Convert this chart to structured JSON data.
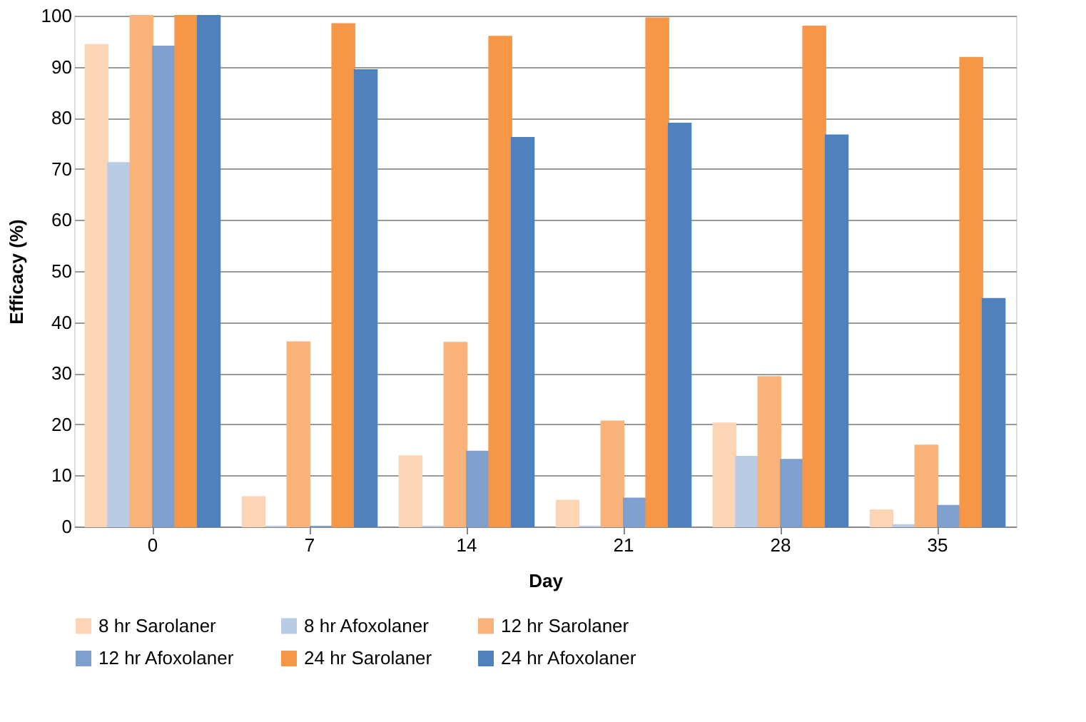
{
  "chart_data": {
    "type": "bar",
    "xlabel": "Day",
    "ylabel": "Efficacy (%)",
    "categories": [
      "0",
      "7",
      "14",
      "21",
      "28",
      "35"
    ],
    "series": [
      {
        "name": "8 hr Sarolaner",
        "color": "#fcd5b4",
        "values": [
          94.3,
          5.8,
          13.8,
          5.1,
          20.2,
          3.2
        ]
      },
      {
        "name": "8 hr Afoxolaner",
        "color": "#b8cce4",
        "values": [
          71.2,
          0,
          0,
          0,
          13.7,
          0.3
        ]
      },
      {
        "name": "12 hr Sarolaner",
        "color": "#f9b27a",
        "values": [
          100,
          36.1,
          36,
          20.6,
          29.3,
          15.9
        ]
      },
      {
        "name": "12 hr Afoxolaner",
        "color": "#7f9fcf",
        "values": [
          94,
          0,
          14.7,
          5.5,
          13.1,
          4.1
        ]
      },
      {
        "name": "24 hr Sarolaner",
        "color": "#f79646",
        "values": [
          100,
          98.4,
          95.9,
          99.5,
          97.9,
          91.8
        ]
      },
      {
        "name": "24 hr Afoxolaner",
        "color": "#4f81bd",
        "values": [
          100,
          89.4,
          76.1,
          78.9,
          76.6,
          44.6
        ]
      }
    ],
    "ylim": [
      0,
      100
    ],
    "yticks": [
      0,
      10,
      20,
      30,
      40,
      50,
      60,
      70,
      80,
      90,
      100
    ],
    "grid": "y",
    "legend": "bottom"
  }
}
